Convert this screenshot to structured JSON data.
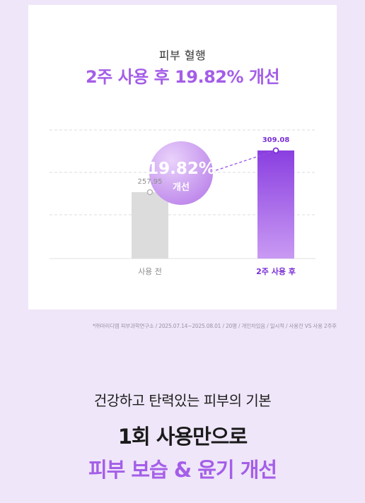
{
  "card": {
    "subtitle": "피부 혈행",
    "title": "2주 사용 후 19.82% 개선"
  },
  "chart_data": {
    "type": "bar",
    "categories": [
      "사용 전",
      "2주 사용 후"
    ],
    "values": [
      257.95,
      309.08
    ],
    "value_labels": [
      "257.95",
      "309.08"
    ],
    "grid": true,
    "colors": {
      "before": "#dcdcdc",
      "after_top": "#8a3fe0",
      "after_bottom": "#c99af3",
      "accent": "#9a52e6"
    },
    "badge": {
      "value": "19.82%",
      "label": "개선"
    }
  },
  "footnote": "*㈜마리디엠 피부과학연구소 / 2025.07.14~2025.08.01 / 20명 / 개인차있음 / 일시적 / 사용전 VS 사용 2주후",
  "promo": {
    "line1": "건강하고 탄력있는 피부의 기본",
    "line2": "1회 사용만으로",
    "line3": "피부 보습 & 윤기 개선"
  }
}
